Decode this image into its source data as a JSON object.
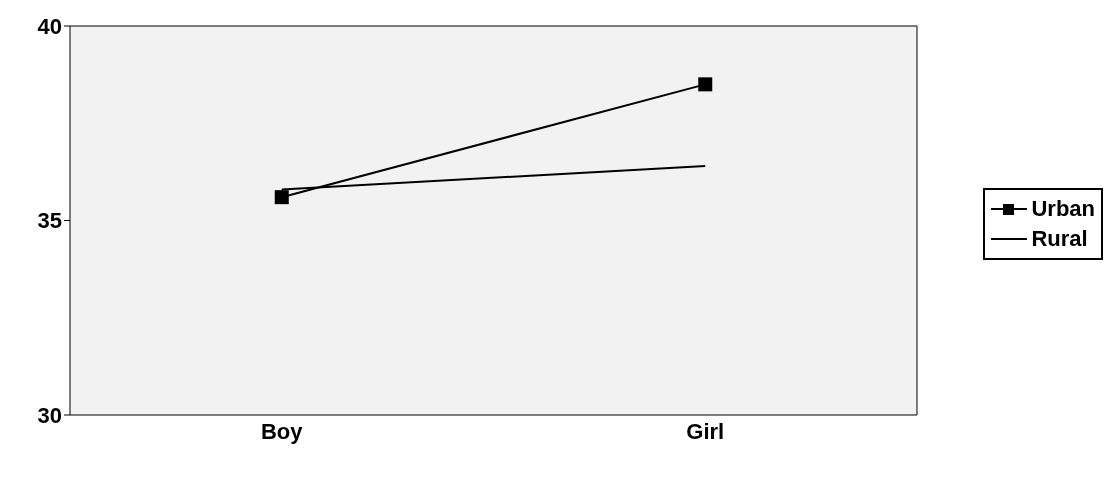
{
  "chart_data": {
    "type": "line",
    "categories": [
      "Boy",
      "Girl"
    ],
    "series": [
      {
        "name": "Urban",
        "color": "#000000",
        "values": [
          35.6,
          38.5
        ],
        "marker": "square"
      },
      {
        "name": "Rural",
        "color": "#000000",
        "values": [
          35.8,
          36.4
        ],
        "marker": "none"
      }
    ],
    "ylim": [
      30,
      40
    ],
    "yticks": [
      30,
      35,
      40
    ],
    "grid": false,
    "legend": "right",
    "line_style": "solid"
  }
}
